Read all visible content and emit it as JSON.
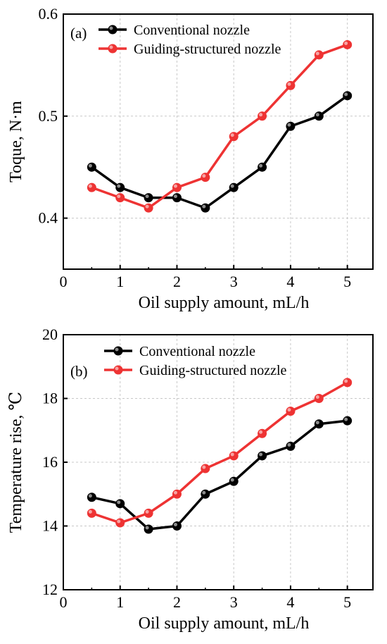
{
  "chart_data": [
    {
      "type": "line",
      "panel_label": "(a)",
      "xlabel": "Oil supply amount, mL/h",
      "ylabel": "Toque, N·m",
      "xlim": [
        0,
        5.45
      ],
      "ylim": [
        0.35,
        0.6
      ],
      "xticks": [
        0,
        1,
        2,
        3,
        4,
        5
      ],
      "yticks": [
        0.4,
        0.5,
        0.6
      ],
      "xtick_labels": [
        "0",
        "1",
        "2",
        "3",
        "4",
        "5"
      ],
      "ytick_labels": [
        "0.4",
        "0.5",
        "0.6"
      ],
      "grid": true,
      "legend_position": "top-left",
      "x": [
        0.5,
        1,
        1.5,
        2,
        2.5,
        3,
        3.5,
        4,
        4.5,
        5
      ],
      "series": [
        {
          "name": "Conventional nozzle",
          "color": "#000000",
          "values": [
            0.45,
            0.43,
            0.42,
            0.42,
            0.41,
            0.43,
            0.45,
            0.49,
            0.5,
            0.52
          ]
        },
        {
          "name": "Guiding-structured nozzle",
          "color": "#ee3333",
          "values": [
            0.43,
            0.42,
            0.41,
            0.43,
            0.44,
            0.48,
            0.5,
            0.53,
            0.56,
            0.57
          ]
        }
      ]
    },
    {
      "type": "line",
      "panel_label": "(b)",
      "xlabel": "Oil supply amount, mL/h",
      "ylabel": "Temperature rise, ℃",
      "xlim": [
        0,
        5.45
      ],
      "ylim": [
        12,
        20
      ],
      "xticks": [
        0,
        1,
        2,
        3,
        4,
        5
      ],
      "yticks": [
        12,
        14,
        16,
        18,
        20
      ],
      "xtick_labels": [
        "0",
        "1",
        "2",
        "3",
        "4",
        "5"
      ],
      "ytick_labels": [
        "12",
        "14",
        "16",
        "18",
        "20"
      ],
      "grid": true,
      "legend_position": "top-left",
      "x": [
        0.5,
        1,
        1.5,
        2,
        2.5,
        3,
        3.5,
        4,
        4.5,
        5
      ],
      "series": [
        {
          "name": "Conventional nozzle",
          "color": "#000000",
          "values": [
            14.9,
            14.7,
            13.9,
            14.0,
            15.0,
            15.4,
            16.2,
            16.5,
            17.2,
            17.3
          ]
        },
        {
          "name": "Guiding-structured nozzle",
          "color": "#ee3333",
          "values": [
            14.4,
            14.1,
            14.4,
            15.0,
            15.8,
            16.2,
            16.9,
            17.6,
            18.0,
            18.5
          ]
        }
      ]
    }
  ]
}
